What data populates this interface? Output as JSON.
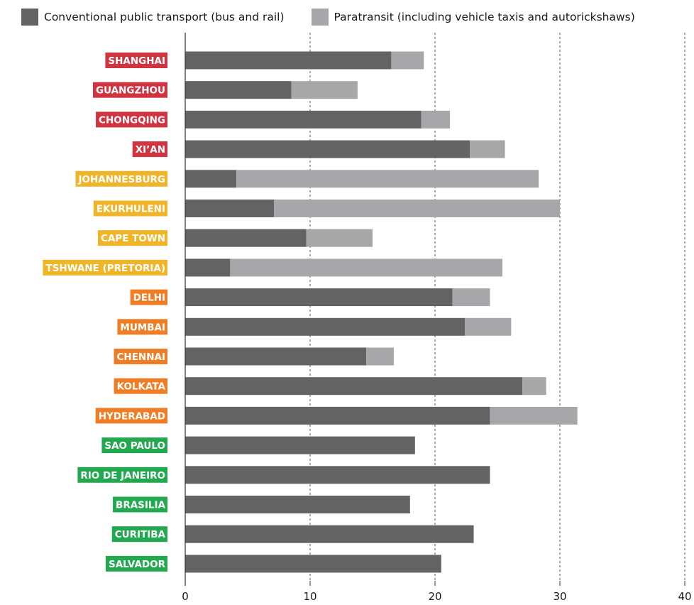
{
  "colors": {
    "conventional": "#636363",
    "paratransit": "#a7a7aa",
    "china": "#d03441",
    "south_africa": "#f0b429",
    "india": "#ef7d26",
    "brazil": "#22a84f",
    "axis": "#333333",
    "grid": "#555555"
  },
  "legend": [
    {
      "key": "conventional",
      "label": "Conventional public transport (bus and rail)"
    },
    {
      "key": "paratransit",
      "label": "Paratransit (including vehicle taxis and autorickshaws)"
    }
  ],
  "chart_data": {
    "type": "bar",
    "orientation": "horizontal",
    "stacked": true,
    "categories": [
      "SHANGHAI",
      "GUANGZHOU",
      "CHONGQING",
      "XI’AN",
      "JOHANNESBURG",
      "EKURHULENI",
      "CAPE TOWN",
      "TSHWANE (PRETORIA)",
      "DELHI",
      "MUMBAI",
      "CHENNAI",
      "KOLKATA",
      "HYDERABAD",
      "SAO PAULO",
      "RIO DE JANEIRO",
      "BRASILIA",
      "CURITIBA",
      "SALVADOR"
    ],
    "category_groups": [
      "china",
      "china",
      "china",
      "china",
      "south_africa",
      "south_africa",
      "south_africa",
      "south_africa",
      "india",
      "india",
      "india",
      "india",
      "india",
      "brazil",
      "brazil",
      "brazil",
      "brazil",
      "brazil"
    ],
    "series": [
      {
        "name": "Conventional public transport (bus and rail)",
        "color_key": "conventional",
        "values": [
          16.5,
          8.5,
          18.9,
          22.8,
          4.1,
          7.1,
          9.7,
          3.6,
          21.4,
          22.4,
          14.5,
          27.0,
          24.4,
          18.4,
          24.4,
          18.0,
          23.1,
          20.5
        ]
      },
      {
        "name": "Paratransit (including vehicle taxis and autorickshaws)",
        "color_key": "paratransit",
        "values": [
          2.6,
          5.3,
          2.3,
          2.8,
          24.2,
          22.9,
          5.3,
          21.8,
          3.0,
          3.7,
          2.2,
          1.9,
          7.0,
          0,
          0,
          0,
          0,
          0
        ]
      }
    ],
    "xlim": [
      0,
      40
    ],
    "xticks": [
      0,
      10,
      20,
      30,
      40
    ],
    "grid": "vertical dashed",
    "legend_position": "top"
  }
}
